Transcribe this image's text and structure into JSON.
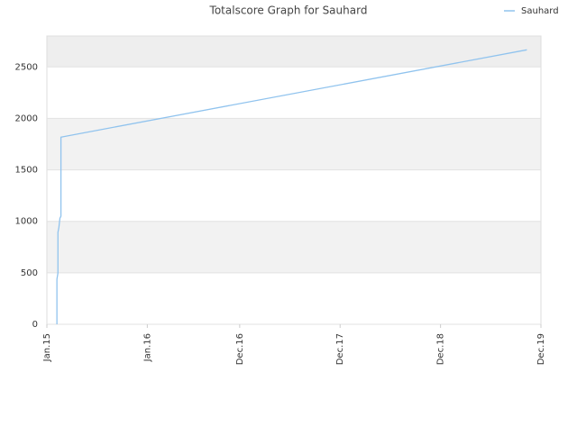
{
  "chart_data": {
    "type": "line",
    "title": "Totalscore Graph for Sauhard",
    "x": [
      2015.1,
      2015.1,
      2015.11,
      2015.11,
      2015.12,
      2015.13,
      2015.14,
      2015.14,
      2019.78
    ],
    "series": [
      {
        "name": "Sauhard",
        "color": "#90c3ee",
        "values": [
          0,
          437,
          498,
          892,
          944,
          1031,
          1049,
          1818,
          2666
        ]
      }
    ],
    "xlim": [
      2015.0,
      2019.92
    ],
    "xticks": [
      {
        "value": 2015.0,
        "label": "Jan.15"
      },
      {
        "value": 2016.0,
        "label": "Jan.16"
      },
      {
        "value": 2016.92,
        "label": "Dec.16"
      },
      {
        "value": 2017.92,
        "label": "Dec.17"
      },
      {
        "value": 2018.92,
        "label": "Dec.18"
      },
      {
        "value": 2019.92,
        "label": "Dec.19"
      }
    ],
    "ylim": [
      0,
      2800
    ],
    "yticks": [
      0,
      500,
      1000,
      1500,
      2000,
      2500
    ],
    "grid": true,
    "legend": "top-right"
  }
}
